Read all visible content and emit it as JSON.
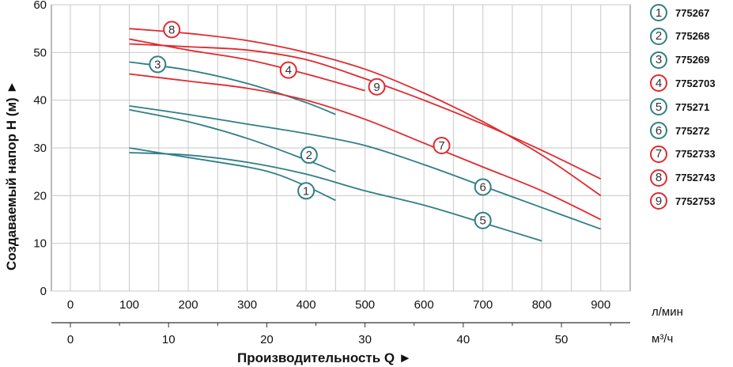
{
  "chart_data": {
    "type": "line",
    "ylabel": "Создаваемый напор H (м) ►",
    "xlabel": "Производительность Q ►",
    "ylim": [
      0,
      60
    ],
    "xlim_lmin": [
      0,
      950
    ],
    "yticks": [
      "0",
      "10",
      "20",
      "30",
      "40",
      "50",
      "60"
    ],
    "x_axis_lmin": {
      "unit": "л/мин",
      "ticks": [
        {
          "v": 0,
          "label": "0"
        },
        {
          "v": 100,
          "label": "100"
        },
        {
          "v": 200,
          "label": "200"
        },
        {
          "v": 300,
          "label": "300"
        },
        {
          "v": 400,
          "label": "400"
        },
        {
          "v": 500,
          "label": "500"
        },
        {
          "v": 600,
          "label": "600"
        },
        {
          "v": 700,
          "label": "700"
        },
        {
          "v": 800,
          "label": "800"
        },
        {
          "v": 900,
          "label": "900"
        }
      ]
    },
    "x_axis_m3h": {
      "unit": "м³/ч",
      "ticks": [
        {
          "v": 0,
          "label": "0"
        },
        {
          "v": 10,
          "label": "10"
        },
        {
          "v": 20,
          "label": "20"
        },
        {
          "v": 30,
          "label": "30"
        },
        {
          "v": 40,
          "label": "40"
        },
        {
          "v": 50,
          "label": "50"
        }
      ]
    },
    "grid": true,
    "legend_position": "right",
    "colors": {
      "teal": "#2f7f86",
      "red": "#e02a2f"
    },
    "series": [
      {
        "id": "1",
        "name": "775267",
        "color": "#2f7f86",
        "x": [
          100,
          200,
          300,
          350,
          400,
          450
        ],
        "y": [
          30,
          28,
          26,
          24.5,
          22,
          19
        ],
        "label_at": [
          400,
          21
        ]
      },
      {
        "id": "2",
        "name": "775268",
        "color": "#2f7f86",
        "x": [
          100,
          200,
          300,
          400,
          450
        ],
        "y": [
          38,
          35.5,
          32,
          27.5,
          25
        ],
        "label_at": [
          405,
          28.5
        ]
      },
      {
        "id": "3",
        "name": "775269",
        "color": "#2f7f86",
        "x": [
          100,
          200,
          300,
          400,
          450
        ],
        "y": [
          48,
          46.3,
          43.5,
          39.5,
          37
        ],
        "label_at": [
          148,
          47.5
        ]
      },
      {
        "id": "4",
        "name": "7752703",
        "color": "#e02a2f",
        "x": [
          100,
          200,
          300,
          400,
          500
        ],
        "y": [
          52.8,
          50.5,
          48.5,
          45.5,
          42
        ],
        "label_at": [
          370,
          46.3
        ]
      },
      {
        "id": "5",
        "name": "775271",
        "color": "#2f7f86",
        "x": [
          100,
          200,
          300,
          400,
          500,
          600,
          700,
          800
        ],
        "y": [
          29,
          28.5,
          27,
          24.5,
          21,
          18,
          14.3,
          10.5
        ],
        "label_at": [
          700,
          14.8
        ]
      },
      {
        "id": "6",
        "name": "775272",
        "color": "#2f7f86",
        "x": [
          100,
          200,
          300,
          400,
          500,
          600,
          700,
          800,
          900
        ],
        "y": [
          38.8,
          37,
          35,
          33,
          30.5,
          26.5,
          22,
          17.5,
          13
        ],
        "label_at": [
          700,
          21.8
        ]
      },
      {
        "id": "7",
        "name": "7752733",
        "color": "#e02a2f",
        "x": [
          100,
          200,
          300,
          400,
          500,
          600,
          700,
          800,
          900
        ],
        "y": [
          45.5,
          44,
          42.5,
          40,
          36,
          31,
          26,
          21,
          15
        ],
        "label_at": [
          630,
          30.5
        ]
      },
      {
        "id": "8",
        "name": "7752743",
        "color": "#e02a2f",
        "x": [
          100,
          200,
          300,
          400,
          500,
          600,
          700,
          800,
          900
        ],
        "y": [
          55,
          54,
          52.5,
          50,
          46.5,
          41.5,
          35.5,
          28.5,
          20
        ],
        "label_at": [
          172,
          54.8
        ]
      },
      {
        "id": "9",
        "name": "7752753",
        "color": "#e02a2f",
        "x": [
          100,
          200,
          300,
          400,
          500,
          600,
          700,
          800,
          900
        ],
        "y": [
          51.8,
          51.2,
          50.5,
          48.5,
          44.5,
          40,
          35,
          29.5,
          23.5
        ],
        "label_at": [
          520,
          42.8
        ]
      }
    ]
  }
}
